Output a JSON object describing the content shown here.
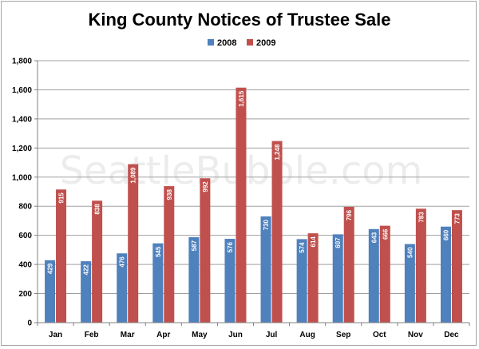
{
  "chart_data": {
    "type": "bar",
    "title": "King County Notices of Trustee Sale",
    "watermark": "SeattleBubble.com",
    "categories": [
      "Jan",
      "Feb",
      "Mar",
      "Apr",
      "May",
      "Jun",
      "Jul",
      "Aug",
      "Sep",
      "Oct",
      "Nov",
      "Dec"
    ],
    "series": [
      {
        "name": "2008",
        "color": "#4f81bd",
        "values": [
          429,
          422,
          476,
          545,
          587,
          576,
          730,
          574,
          607,
          643,
          540,
          660
        ]
      },
      {
        "name": "2009",
        "color": "#c0504d",
        "values": [
          915,
          838,
          1089,
          938,
          992,
          1615,
          1248,
          614,
          796,
          666,
          783,
          773
        ]
      }
    ],
    "data_labels": {
      "2008": [
        "429",
        "422",
        "476",
        "545",
        "587",
        "576",
        "730",
        "574",
        "607",
        "643",
        "540",
        "660"
      ],
      "2009": [
        "915",
        "838",
        "1,089",
        "938",
        "992",
        "1,615",
        "1,248",
        "614",
        "796",
        "666",
        "783",
        "773"
      ]
    },
    "ylim": [
      0,
      1800
    ],
    "yticks": [
      0,
      200,
      400,
      600,
      800,
      1000,
      1200,
      1400,
      1600,
      1800
    ],
    "ytick_labels": [
      "0",
      "200",
      "400",
      "600",
      "800",
      "1,000",
      "1,200",
      "1,400",
      "1,600",
      "1,800"
    ],
    "grid": true,
    "legend_position": "top-center",
    "xlabel": "",
    "ylabel": ""
  }
}
